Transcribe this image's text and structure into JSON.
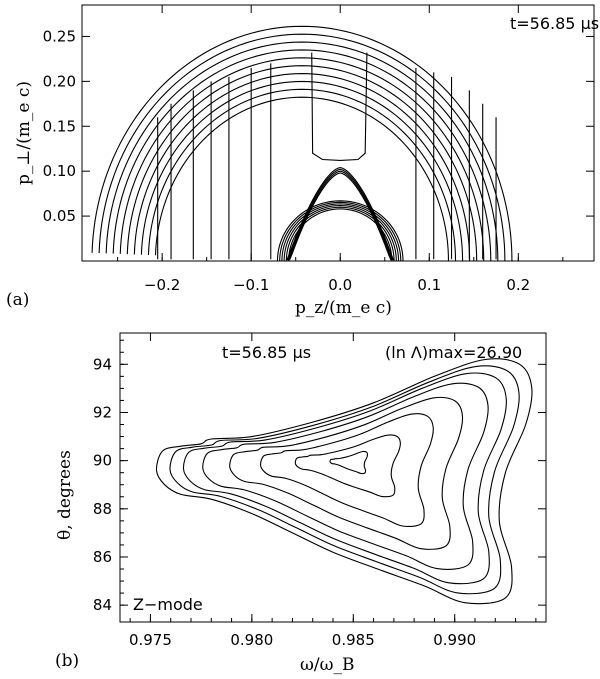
{
  "panel_a": {
    "label": "(a)",
    "annotation": "t=56.85 μs",
    "xlabel": "p_z/(m_e c)",
    "ylabel": "p_⊥/(m_e c)",
    "xticks": [
      "−0.2",
      "−0.1",
      "0.0",
      "0.1",
      "0.2"
    ],
    "yticks": [
      "0.05",
      "0.10",
      "0.15",
      "0.20",
      "0.25"
    ]
  },
  "panel_b": {
    "label": "(b)",
    "annotation_t": "t=56.85 μs",
    "annotation_max": "(ln Λ)max=26.90",
    "mode_label": "Z−mode",
    "xlabel": "ω/ω_B",
    "ylabel": "θ, degrees",
    "xticks": [
      "0.975",
      "0.980",
      "0.985",
      "0.990"
    ],
    "yticks": [
      "84",
      "86",
      "88",
      "90",
      "92",
      "94"
    ]
  },
  "chart_data": [
    {
      "type": "contour",
      "xlim": [
        -0.29,
        0.285
      ],
      "ylim": [
        0,
        0.285
      ],
      "grid": false,
      "outer_boundary_radius_range": [
        0.185,
        0.27
      ],
      "inner_boundary_radius_range": [
        0.058,
        0.07
      ],
      "core": {
        "center": [
          0.0,
          0.0
        ],
        "radius": 0.06,
        "peak_p_perp": 0.103
      }
    },
    {
      "type": "contour",
      "xlim": [
        0.9735,
        0.9945
      ],
      "ylim": [
        83.3,
        95.3
      ],
      "grid": false,
      "peak": {
        "omega": 0.9848,
        "theta": 90.0
      },
      "levels": 8
    }
  ]
}
